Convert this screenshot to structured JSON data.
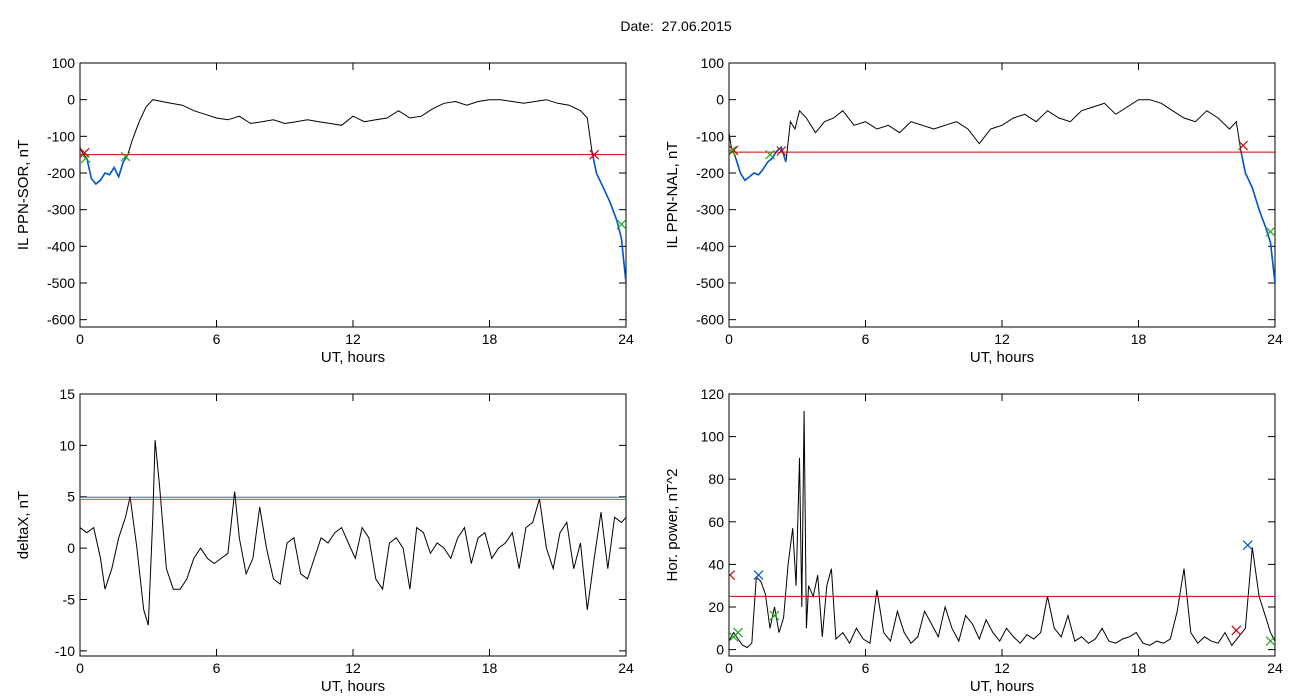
{
  "figure": {
    "title_prefix": "Date:",
    "title_date": "27.06.2015"
  },
  "colors": {
    "frame": "#000000",
    "trace": "#000000",
    "threshold": "#cc0000",
    "highlight": "#0055cc",
    "marker_red": "#cc0000",
    "marker_green": "#22aa22",
    "marker_blue": "#0055cc",
    "line_blue": "#3366cc",
    "line_green": "#22aa22"
  },
  "chart_data": [
    {
      "id": "ppn-sor",
      "type": "line",
      "title": "",
      "xlabel": "UT, hours",
      "ylabel": "IL PPN-SOR, nT",
      "xlim": [
        0,
        24
      ],
      "ylim": [
        -620,
        100
      ],
      "xticks": [
        0,
        6,
        12,
        18,
        24
      ],
      "yticks": [
        -600,
        -500,
        -400,
        -300,
        -200,
        -100,
        0,
        100
      ],
      "grid": false,
      "series": [
        {
          "x": [
            0,
            0.1,
            0.3,
            0.5,
            0.7,
            0.9,
            1.1,
            1.3,
            1.5,
            1.7,
            1.9,
            2.1,
            2.3,
            2.6,
            2.9,
            3.2,
            3.6,
            4.0,
            4.5,
            5.0,
            5.5,
            6.0,
            6.5,
            7.0,
            7.5,
            8.0,
            8.5,
            9.0,
            9.5,
            10.0,
            10.5,
            11.0,
            11.5,
            12.0,
            12.5,
            13.0,
            13.5,
            14.0,
            14.5,
            15.0,
            15.5,
            16.0,
            16.5,
            17.0,
            17.5,
            18.0,
            18.5,
            19.0,
            19.5,
            20.0,
            20.5,
            21.0,
            21.5,
            22.0,
            22.3,
            22.5,
            22.7,
            23.0,
            23.3,
            23.6,
            23.8,
            24.0
          ],
          "y": [
            -130,
            -145,
            -160,
            -215,
            -230,
            -220,
            -200,
            -205,
            -185,
            -210,
            -170,
            -150,
            -110,
            -60,
            -20,
            0,
            -5,
            -10,
            -15,
            -30,
            -40,
            -50,
            -55,
            -45,
            -65,
            -60,
            -55,
            -65,
            -60,
            -55,
            -60,
            -65,
            -70,
            -45,
            -60,
            -55,
            -50,
            -30,
            -50,
            -45,
            -25,
            -10,
            -5,
            -15,
            -5,
            0,
            0,
            -5,
            -10,
            -5,
            0,
            -10,
            -15,
            -30,
            -50,
            -140,
            -200,
            -240,
            -280,
            -330,
            -380,
            -500
          ]
        }
      ],
      "threshold": -150,
      "markers_red": [
        {
          "x": 0.2,
          "y": -145
        },
        {
          "x": 22.6,
          "y": -150
        }
      ],
      "markers_green": [
        {
          "x": 0.25,
          "y": -160
        },
        {
          "x": 2.0,
          "y": -155
        },
        {
          "x": 23.8,
          "y": -340
        }
      ],
      "highlight_x": [
        [
          0.2,
          2.1
        ],
        [
          22.4,
          24
        ]
      ]
    },
    {
      "id": "ppn-nal",
      "type": "line",
      "title": "",
      "xlabel": "UT, hours",
      "ylabel": "IL PPN-NAL, nT",
      "xlim": [
        0,
        24
      ],
      "ylim": [
        -620,
        100
      ],
      "xticks": [
        0,
        6,
        12,
        18,
        24
      ],
      "yticks": [
        -600,
        -500,
        -400,
        -300,
        -200,
        -100,
        0,
        100
      ],
      "grid": false,
      "series": [
        {
          "x": [
            0,
            0.1,
            0.3,
            0.5,
            0.7,
            0.9,
            1.1,
            1.3,
            1.5,
            1.7,
            1.9,
            2.1,
            2.3,
            2.5,
            2.7,
            2.9,
            3.1,
            3.4,
            3.8,
            4.2,
            4.6,
            5.0,
            5.5,
            6.0,
            6.5,
            7.0,
            7.5,
            8.0,
            8.5,
            9.0,
            9.5,
            10.0,
            10.5,
            11.0,
            11.5,
            12.0,
            12.5,
            13.0,
            13.5,
            14.0,
            14.5,
            15.0,
            15.5,
            16.0,
            16.5,
            17.0,
            17.5,
            18.0,
            18.5,
            19.0,
            19.5,
            20.0,
            20.5,
            21.0,
            21.5,
            22.0,
            22.3,
            22.5,
            22.7,
            23.0,
            23.3,
            23.6,
            23.8,
            24.0
          ],
          "y": [
            -90,
            -130,
            -160,
            -200,
            -220,
            -210,
            -200,
            -205,
            -190,
            -170,
            -160,
            -140,
            -130,
            -170,
            -60,
            -80,
            -30,
            -50,
            -90,
            -60,
            -50,
            -30,
            -70,
            -60,
            -80,
            -70,
            -90,
            -60,
            -70,
            -80,
            -70,
            -60,
            -80,
            -120,
            -80,
            -70,
            -50,
            -40,
            -60,
            -30,
            -50,
            -60,
            -30,
            -20,
            -10,
            -40,
            -20,
            0,
            0,
            -10,
            -30,
            -50,
            -60,
            -30,
            -50,
            -80,
            -60,
            -140,
            -200,
            -240,
            -300,
            -350,
            -390,
            -500
          ]
        }
      ],
      "threshold": -143,
      "markers_red": [
        {
          "x": 0.2,
          "y": -138
        },
        {
          "x": 2.3,
          "y": -140
        },
        {
          "x": 22.6,
          "y": -125
        }
      ],
      "markers_green": [
        {
          "x": 0.1,
          "y": -140
        },
        {
          "x": 1.8,
          "y": -150
        },
        {
          "x": 23.8,
          "y": -360
        }
      ],
      "highlight_x": [
        [
          0.2,
          2.6
        ],
        [
          22.4,
          24
        ]
      ]
    },
    {
      "id": "deltax",
      "type": "line",
      "title": "",
      "xlabel": "UT, hours",
      "ylabel": "deltaX, nT",
      "xlim": [
        0,
        24
      ],
      "ylim": [
        -10.5,
        15
      ],
      "xticks": [
        0,
        6,
        12,
        18,
        24
      ],
      "yticks": [
        -10,
        -5,
        0,
        5,
        10,
        15
      ],
      "grid": false,
      "series": [
        {
          "x": [
            0,
            0.3,
            0.6,
            0.9,
            1.1,
            1.4,
            1.7,
            2.0,
            2.2,
            2.5,
            2.8,
            3.0,
            3.2,
            3.3,
            3.5,
            3.8,
            4.1,
            4.4,
            4.7,
            5.0,
            5.3,
            5.6,
            5.9,
            6.2,
            6.5,
            6.8,
            7.0,
            7.3,
            7.6,
            7.9,
            8.2,
            8.5,
            8.8,
            9.1,
            9.4,
            9.7,
            10.0,
            10.3,
            10.6,
            10.9,
            11.2,
            11.5,
            11.8,
            12.1,
            12.4,
            12.7,
            13.0,
            13.3,
            13.6,
            13.9,
            14.2,
            14.5,
            14.8,
            15.1,
            15.4,
            15.7,
            16.0,
            16.3,
            16.6,
            16.9,
            17.2,
            17.5,
            17.8,
            18.1,
            18.4,
            18.7,
            19.0,
            19.3,
            19.6,
            19.9,
            20.2,
            20.5,
            20.8,
            21.1,
            21.4,
            21.7,
            22.0,
            22.3,
            22.6,
            22.9,
            23.2,
            23.5,
            23.8,
            24.0
          ],
          "y": [
            2,
            1.5,
            2,
            -1,
            -4,
            -2,
            1,
            3,
            5,
            0,
            -6,
            -7.5,
            3,
            10.5,
            6,
            -2,
            -4,
            -4,
            -3,
            -1,
            0,
            -1,
            -1.5,
            -1,
            -0.5,
            5.5,
            1,
            -2.5,
            -1,
            4,
            0,
            -3,
            -3.5,
            0.5,
            1,
            -2.5,
            -3,
            -1,
            1,
            0.5,
            1.5,
            2,
            0.5,
            -1,
            2,
            1,
            -3,
            -4,
            0.5,
            1,
            0,
            -4,
            2,
            1.5,
            -0.5,
            0.5,
            0,
            -1,
            1,
            2,
            -1.5,
            1,
            1.5,
            -1,
            0,
            0.5,
            1.5,
            -2,
            2,
            2.5,
            4.8,
            0,
            -2,
            1.5,
            2.5,
            -2,
            0.5,
            -6,
            -1,
            3.5,
            -2,
            3,
            2.5,
            3
          ]
        }
      ],
      "hlines": [
        {
          "y": 4.95,
          "color": "line_blue"
        },
        {
          "y": 4.75,
          "color": "line_green"
        }
      ]
    },
    {
      "id": "hor-power",
      "type": "line",
      "title": "",
      "xlabel": "UT, hours",
      "ylabel": "Hor. power, nT^2",
      "xlim": [
        0,
        24
      ],
      "ylim": [
        -3,
        120
      ],
      "xticks": [
        0,
        6,
        12,
        18,
        24
      ],
      "yticks": [
        0,
        20,
        40,
        60,
        80,
        100,
        120
      ],
      "grid": false,
      "series": [
        {
          "x": [
            0,
            0.2,
            0.4,
            0.6,
            0.8,
            1.0,
            1.2,
            1.4,
            1.6,
            1.8,
            2.0,
            2.2,
            2.4,
            2.6,
            2.8,
            2.95,
            3.1,
            3.2,
            3.3,
            3.4,
            3.5,
            3.7,
            3.9,
            4.1,
            4.3,
            4.5,
            4.7,
            5.0,
            5.3,
            5.6,
            5.9,
            6.2,
            6.5,
            6.8,
            7.1,
            7.4,
            7.7,
            8.0,
            8.3,
            8.6,
            8.9,
            9.2,
            9.5,
            9.8,
            10.1,
            10.4,
            10.7,
            11.0,
            11.3,
            11.6,
            11.9,
            12.2,
            12.5,
            12.8,
            13.1,
            13.4,
            13.7,
            14.0,
            14.3,
            14.6,
            14.9,
            15.2,
            15.5,
            15.8,
            16.1,
            16.4,
            16.7,
            17.0,
            17.3,
            17.6,
            17.9,
            18.2,
            18.5,
            18.8,
            19.1,
            19.4,
            19.7,
            20.0,
            20.3,
            20.6,
            20.9,
            21.2,
            21.5,
            21.8,
            22.1,
            22.4,
            22.7,
            23.0,
            23.3,
            23.6,
            23.8,
            24.0
          ],
          "y": [
            4,
            8,
            5,
            2,
            1,
            3,
            34,
            32,
            26,
            10,
            20,
            8,
            15,
            40,
            57,
            30,
            90,
            20,
            112,
            10,
            30,
            25,
            35,
            6,
            30,
            38,
            5,
            8,
            3,
            10,
            5,
            3,
            28,
            8,
            4,
            18,
            8,
            3,
            6,
            18,
            12,
            6,
            20,
            10,
            4,
            16,
            12,
            5,
            14,
            8,
            4,
            10,
            6,
            3,
            7,
            5,
            8,
            25,
            10,
            6,
            16,
            4,
            6,
            3,
            5,
            10,
            4,
            3,
            5,
            6,
            8,
            3,
            2,
            4,
            3,
            5,
            18,
            38,
            8,
            3,
            6,
            4,
            3,
            8,
            2,
            6,
            10,
            48,
            25,
            15,
            8,
            4
          ]
        }
      ],
      "threshold": 25,
      "markers_red": [
        {
          "x": 0.05,
          "y": 35
        },
        {
          "x": 22.3,
          "y": 9
        }
      ],
      "markers_green": [
        {
          "x": 0.2,
          "y": 6
        },
        {
          "x": 0.4,
          "y": 8
        },
        {
          "x": 2.0,
          "y": 16
        },
        {
          "x": 23.8,
          "y": 4
        }
      ],
      "markers_blue": [
        {
          "x": 1.3,
          "y": 35
        },
        {
          "x": 22.8,
          "y": 49
        }
      ]
    }
  ]
}
